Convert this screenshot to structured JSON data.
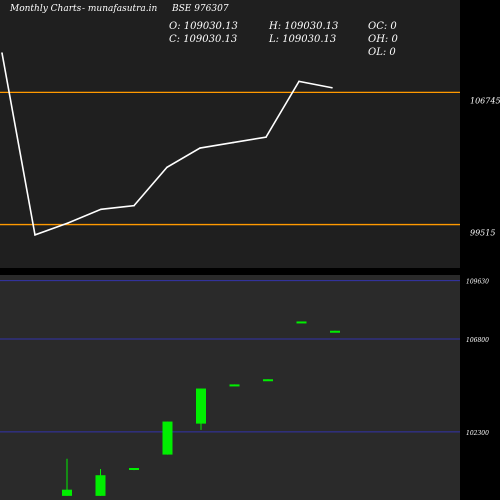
{
  "header": {
    "brand": "Monthly Charts",
    "site": "- munafasutra.in",
    "symbol": "BSE 976307"
  },
  "ohlc": {
    "open": "O: 109030.13",
    "high": "H: 109030.13",
    "close": "C: 109030.13",
    "low": "L: 109030.13",
    "oc": "OC: 0",
    "oh": "OH: 0",
    "ol": "OL: 0"
  },
  "colors": {
    "background": "#000000",
    "upper_panel": "#1f1f1f",
    "lower_panel": "#2a2a2a",
    "line": "#ffffff",
    "level": "#ff9900",
    "grid": "#3333aa",
    "candle_up": "#00ee00"
  },
  "chart_data": [
    {
      "type": "line",
      "series": [
        {
          "values": [
            108900,
            98950,
            99600,
            100350,
            100550,
            102650,
            103700,
            104000,
            104300,
            107350,
            107000
          ]
        }
      ],
      "levels": [
        106745,
        99515
      ],
      "level_labels": [
        "106745",
        "99515"
      ],
      "ylim": [
        97140,
        111800
      ]
    },
    {
      "type": "candlestick",
      "candles": [
        {
          "open": 99200,
          "high": 101000,
          "low": 99200,
          "close": 99500
        },
        {
          "open": 99200,
          "high": 100500,
          "low": 99200,
          "close": 100200
        },
        {
          "open": 100550,
          "high": 100550,
          "low": 100450,
          "close": 100550
        },
        {
          "open": 101200,
          "high": 102800,
          "low": 101200,
          "close": 102800
        },
        {
          "open": 102700,
          "high": 104400,
          "low": 102400,
          "close": 104400
        },
        {
          "open": 104600,
          "high": 104600,
          "low": 104550,
          "close": 104600
        },
        {
          "open": 104850,
          "high": 104850,
          "low": 104800,
          "close": 104850
        },
        {
          "open": 107650,
          "high": 107650,
          "low": 107600,
          "close": 107650
        },
        {
          "open": 107200,
          "high": 107200,
          "low": 107150,
          "close": 107200
        }
      ],
      "gridlines": [
        109630,
        106800,
        102300
      ],
      "gridline_labels": [
        "109630",
        "106800",
        "102300"
      ],
      "ylim": [
        99000,
        109900
      ]
    }
  ]
}
